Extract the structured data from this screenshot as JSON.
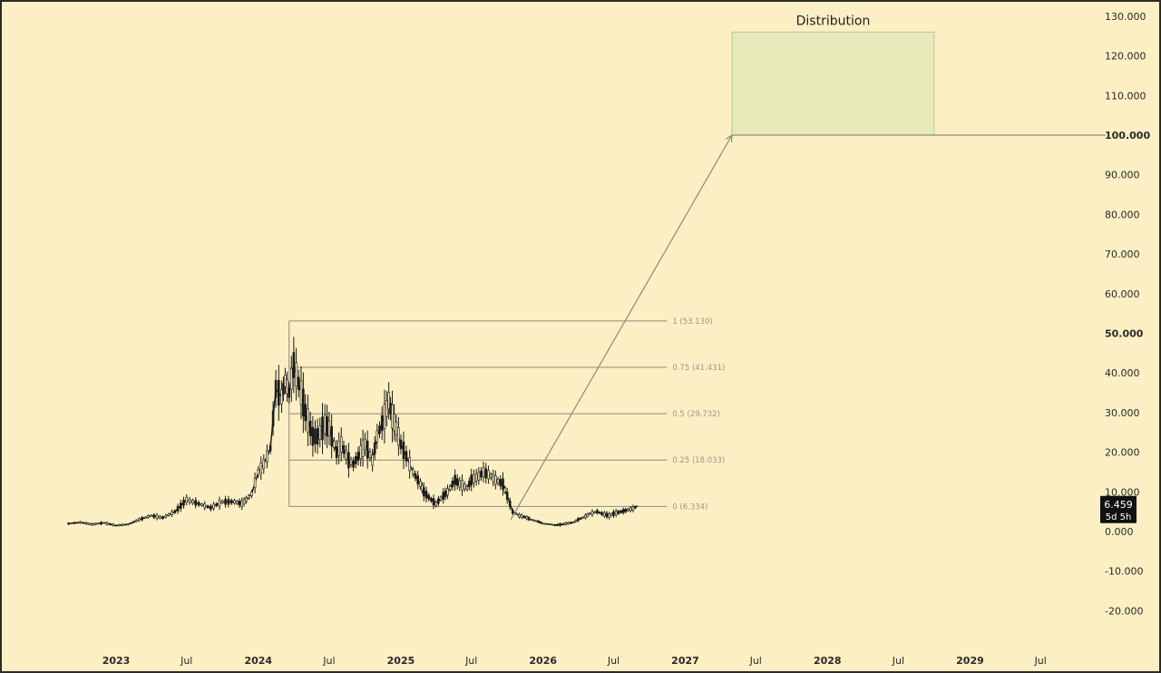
{
  "chart_data": {
    "type": "candlestick",
    "title": "",
    "xlabel": "",
    "ylabel": "",
    "ylim": [
      -26,
      133
    ],
    "xlim": [
      "2022-08-01",
      "2029-12-31"
    ],
    "grid": false,
    "y_ticks": [
      "130.000",
      "120.000",
      "110.000",
      "100.000",
      "90.000",
      "80.000",
      "70.000",
      "60.000",
      "50.000",
      "40.000",
      "30.000",
      "20.000",
      "10.000",
      "0.000",
      "-10.000",
      "-20.000"
    ],
    "y_ticks_bold": [
      "100.000",
      "50.000"
    ],
    "x_ticks": [
      {
        "label": "2023",
        "date": "2023-01-01",
        "year": true
      },
      {
        "label": "Jul",
        "date": "2023-07-01",
        "year": false
      },
      {
        "label": "2024",
        "date": "2024-01-01",
        "year": true
      },
      {
        "label": "Jul",
        "date": "2024-07-01",
        "year": false
      },
      {
        "label": "2025",
        "date": "2025-01-01",
        "year": true
      },
      {
        "label": "Jul",
        "date": "2025-07-01",
        "year": false
      },
      {
        "label": "2026",
        "date": "2026-01-01",
        "year": true
      },
      {
        "label": "Jul",
        "date": "2026-07-01",
        "year": false
      },
      {
        "label": "2027",
        "date": "2027-01-01",
        "year": true
      },
      {
        "label": "Jul",
        "date": "2027-07-01",
        "year": false
      },
      {
        "label": "2028",
        "date": "2028-01-01",
        "year": true
      },
      {
        "label": "Jul",
        "date": "2028-07-01",
        "year": false
      },
      {
        "label": "2029",
        "date": "2029-01-01",
        "year": true
      },
      {
        "label": "Jul",
        "date": "2029-07-01",
        "year": false
      }
    ],
    "price_series": {
      "dates": [
        "2022-09-01",
        "2022-10-01",
        "2022-11-01",
        "2022-12-01",
        "2023-01-01",
        "2023-02-01",
        "2023-03-01",
        "2023-04-01",
        "2023-05-01",
        "2023-06-01",
        "2023-07-01",
        "2023-08-01",
        "2023-09-01",
        "2023-10-01",
        "2023-11-01",
        "2023-11-20",
        "2023-12-01",
        "2023-12-15",
        "2024-01-01",
        "2024-01-15",
        "2024-02-01",
        "2024-02-15",
        "2024-03-01",
        "2024-03-10",
        "2024-03-20",
        "2024-04-01",
        "2024-04-20",
        "2024-05-01",
        "2024-05-20",
        "2024-06-01",
        "2024-06-20",
        "2024-07-01",
        "2024-07-20",
        "2024-08-01",
        "2024-08-20",
        "2024-09-01",
        "2024-09-20",
        "2024-10-01",
        "2024-10-20",
        "2024-11-01",
        "2024-11-20",
        "2024-12-01",
        "2024-12-10",
        "2024-12-20",
        "2025-01-01",
        "2025-01-15",
        "2025-02-01",
        "2025-02-20",
        "2025-03-01",
        "2025-03-20",
        "2025-04-01",
        "2025-04-20",
        "2025-05-01",
        "2025-05-20",
        "2025-06-01",
        "2025-06-20",
        "2025-07-01",
        "2025-07-20",
        "2025-08-01",
        "2025-08-20",
        "2025-09-01",
        "2025-09-20",
        "2025-10-01",
        "2025-10-15",
        "2025-11-01",
        "2025-11-20",
        "2025-12-01",
        "2025-12-20",
        "2026-01-01",
        "2026-01-20",
        "2026-02-01",
        "2026-02-20",
        "2026-03-01",
        "2026-03-20",
        "2026-04-01",
        "2026-04-20",
        "2026-05-01",
        "2026-05-20",
        "2026-06-01",
        "2026-06-20",
        "2026-07-01",
        "2026-07-20",
        "2026-08-01",
        "2026-08-20",
        "2026-09-01"
      ],
      "values": [
        2.0,
        2.3,
        1.8,
        2.2,
        1.5,
        1.8,
        3.0,
        4.0,
        3.5,
        5.0,
        8.0,
        7.0,
        6.0,
        7.5,
        7.5,
        7.0,
        8.0,
        9.5,
        15.0,
        17.0,
        21.0,
        36.0,
        34.0,
        38.0,
        35.0,
        42.0,
        35.0,
        30.0,
        24.0,
        24.0,
        27.0,
        26.0,
        20.0,
        22.0,
        18.0,
        17.0,
        20.0,
        22.0,
        18.0,
        24.0,
        29.0,
        33.0,
        29.0,
        26.0,
        22.0,
        19.0,
        15.0,
        12.0,
        10.0,
        8.0,
        7.0,
        9.0,
        10.0,
        13.0,
        12.0,
        11.0,
        13.0,
        14.0,
        15.0,
        14.0,
        13.0,
        12.0,
        9.0,
        5.0,
        4.0,
        3.5,
        3.0,
        2.5,
        2.0,
        1.8,
        1.6,
        1.8,
        2.0,
        2.3,
        3.0,
        3.8,
        4.5,
        5.0,
        4.5,
        4.0,
        4.5,
        5.0,
        5.3,
        5.8,
        6.459
      ]
    },
    "fib_levels": [
      {
        "label": "1 (53.130)",
        "value": 53.13
      },
      {
        "label": "0.75 (41.431)",
        "value": 41.431
      },
      {
        "label": "0.5 (29.732)",
        "value": 29.732
      },
      {
        "label": "0.25 (18.033)",
        "value": 18.033
      },
      {
        "label": "0 (6.334)",
        "value": 6.334
      }
    ],
    "fib_range": {
      "start": "2024-03-20",
      "end": "2026-11-15"
    },
    "target_line": {
      "value": 100,
      "start": "2027-05-01",
      "end": "2029-12-15"
    },
    "projection_arrow": {
      "from": {
        "date": "2025-10-10",
        "value": 3.0
      },
      "to": {
        "date": "2027-05-01",
        "value": 100
      }
    },
    "distribution_zone": {
      "label": "Distribution",
      "start": "2027-05-01",
      "end": "2028-10-01",
      "low": 100,
      "high": 126
    },
    "last_price": {
      "value": "6.459",
      "countdown": "5d 5h"
    },
    "colors": {
      "background": "#fbefc3",
      "candles": "#1a1a1a",
      "levels": "#8c8c7c",
      "zone_fill": "#e6e9b8",
      "zone_border": "#b9c59a",
      "badge": "#111111"
    }
  }
}
